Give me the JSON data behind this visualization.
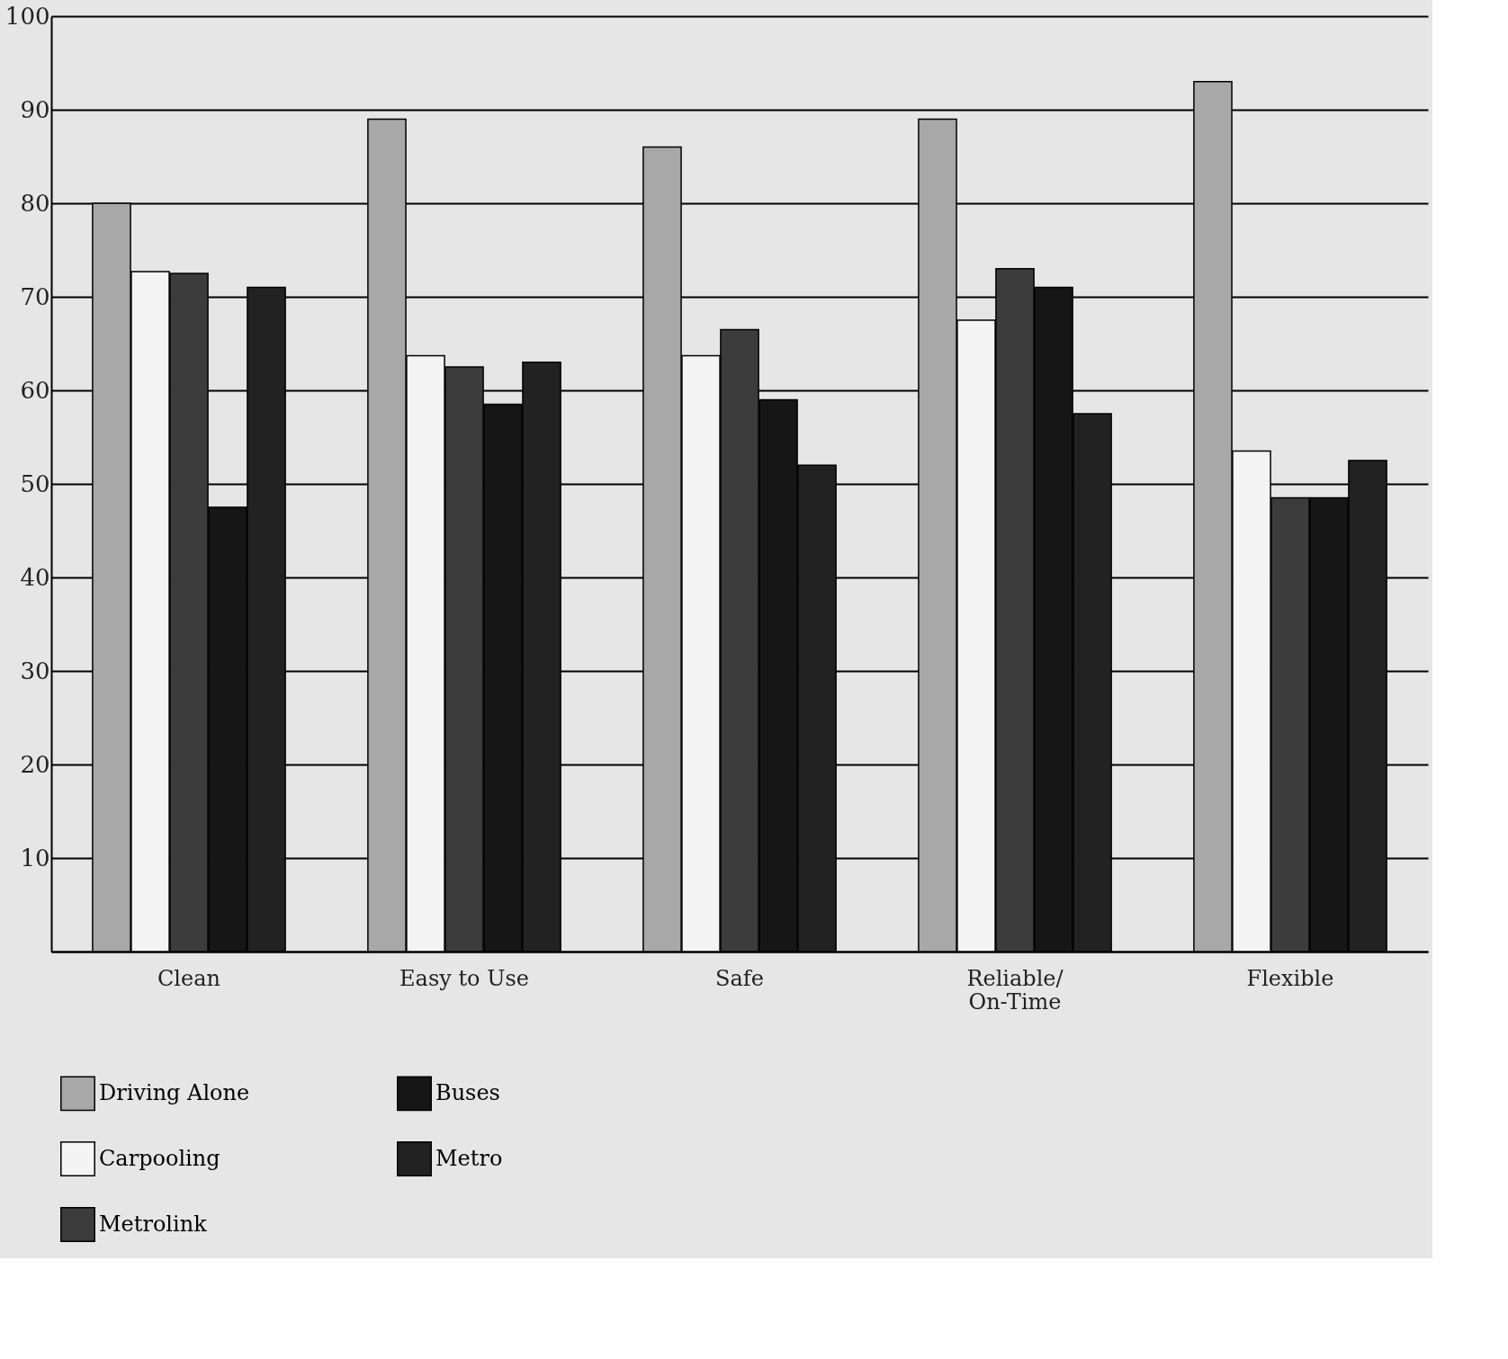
{
  "chart_data": {
    "type": "bar",
    "categories": [
      "Clean",
      "Easy to Use",
      "Safe",
      "Reliable/\nOn-Time",
      "Flexible"
    ],
    "series": [
      {
        "name": "Driving Alone",
        "color": "#a8a8a8",
        "values": [
          80,
          89,
          86,
          89,
          93
        ]
      },
      {
        "name": "Carpooling",
        "color": "#f4f4f4",
        "values": [
          72.7,
          63.7,
          63.7,
          67.5,
          53.5
        ]
      },
      {
        "name": "Metrolink",
        "color": "#3c3c3c",
        "values": [
          72.5,
          62.5,
          66.5,
          73,
          48.5
        ]
      },
      {
        "name": "Buses",
        "color": "#161616",
        "values": [
          47.5,
          58.5,
          59,
          71,
          48.5
        ]
      },
      {
        "name": "Metro",
        "color": "#222222",
        "values": [
          71,
          63,
          52,
          57.5,
          52.5
        ]
      }
    ],
    "ylim": [
      0,
      100
    ],
    "yticks": [
      {
        "value": 0,
        "label": null
      },
      10,
      20,
      30,
      40,
      50,
      60,
      70,
      80,
      90,
      100
    ],
    "grid": "y",
    "legend": "bottom"
  }
}
